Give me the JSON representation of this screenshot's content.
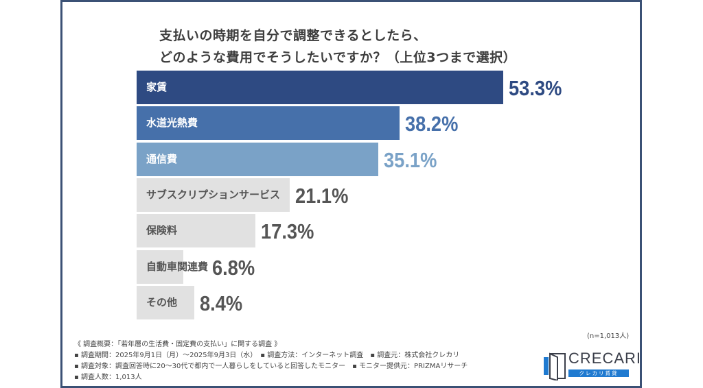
{
  "colors": {
    "frame": "#3b5175",
    "bar_1": "#2e4a82",
    "bar_2": "#4670aa",
    "bar_3": "#7aa2c7",
    "bar_gray": "#e1e1e1",
    "text_gray": "#555555",
    "label_white": "#ffffff",
    "label_gray": "#555555"
  },
  "chart_data": {
    "type": "bar",
    "orientation": "horizontal",
    "title_lines": [
      "支払いの時期を自分で調整できるとしたら、",
      "どのような費用でそうしたいですか？（上位3つまで選択）"
    ],
    "categories": [
      "家賃",
      "水道光熱費",
      "通信費",
      "サブスクリプションサービス",
      "保険料",
      "自動車関連費",
      "その他"
    ],
    "values": [
      53.3,
      38.2,
      35.1,
      21.1,
      17.3,
      6.8,
      8.4
    ],
    "value_labels": [
      "53.3%",
      "38.2%",
      "35.1%",
      "21.1%",
      "17.3%",
      "6.8%",
      "8.4%"
    ],
    "unit": "%",
    "xlabel": "",
    "ylabel": "",
    "grid": false,
    "legend": "none",
    "sample_note": "(n=1,013人)"
  },
  "footnotes": [
    "《 調査概要：「若年層の生活費・固定費の支払い」に関する調査 》",
    "▪ 調査期間：2025年9月1日（月）～2025年9月3日（水）　▪ 調査方法：インターネット調査　▪ 調査元：株式会社クレカリ",
    "▪ 調査対象：調査回答時に20～30代で都内で一人暮らしをしていると回答したモニター　▪ モニター提供元：PRIZMAリサーチ",
    "▪ 調査人数：1,013人"
  ],
  "logo": {
    "name": "CRECARI",
    "subtitle": "クレカリ賃貸"
  }
}
